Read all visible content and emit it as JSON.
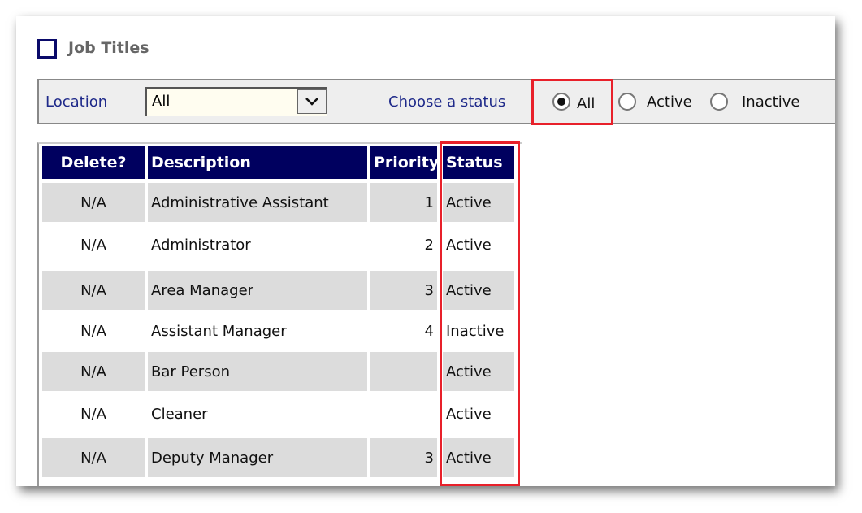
{
  "page": {
    "title": "Job Titles"
  },
  "filter": {
    "location_label": "Location",
    "location_value": "All",
    "status_label": "Choose a status",
    "status_options": [
      "All",
      "Active",
      "Inactive"
    ],
    "status_selected": "All"
  },
  "table": {
    "headers": [
      "Delete?",
      "Description",
      "Priority",
      "Status"
    ],
    "rows": [
      {
        "delete": "N/A",
        "description": "Administrative Assistant",
        "priority": "1",
        "status": "Active"
      },
      {
        "delete": "N/A",
        "description": "Administrator",
        "priority": "2",
        "status": "Active"
      },
      {
        "delete": "N/A",
        "description": "Area Manager",
        "priority": "3",
        "status": "Active"
      },
      {
        "delete": "N/A",
        "description": "Assistant Manager",
        "priority": "4",
        "status": "Inactive"
      },
      {
        "delete": "N/A",
        "description": "Bar Person",
        "priority": "",
        "status": "Active"
      },
      {
        "delete": "N/A",
        "description": "Cleaner",
        "priority": "",
        "status": "Active"
      },
      {
        "delete": "N/A",
        "description": "Deputy Manager",
        "priority": "3",
        "status": "Active"
      }
    ]
  },
  "colors": {
    "header_bg": "#00005f",
    "highlight": "#e8202a",
    "row_gray": "#dcdcdc"
  }
}
